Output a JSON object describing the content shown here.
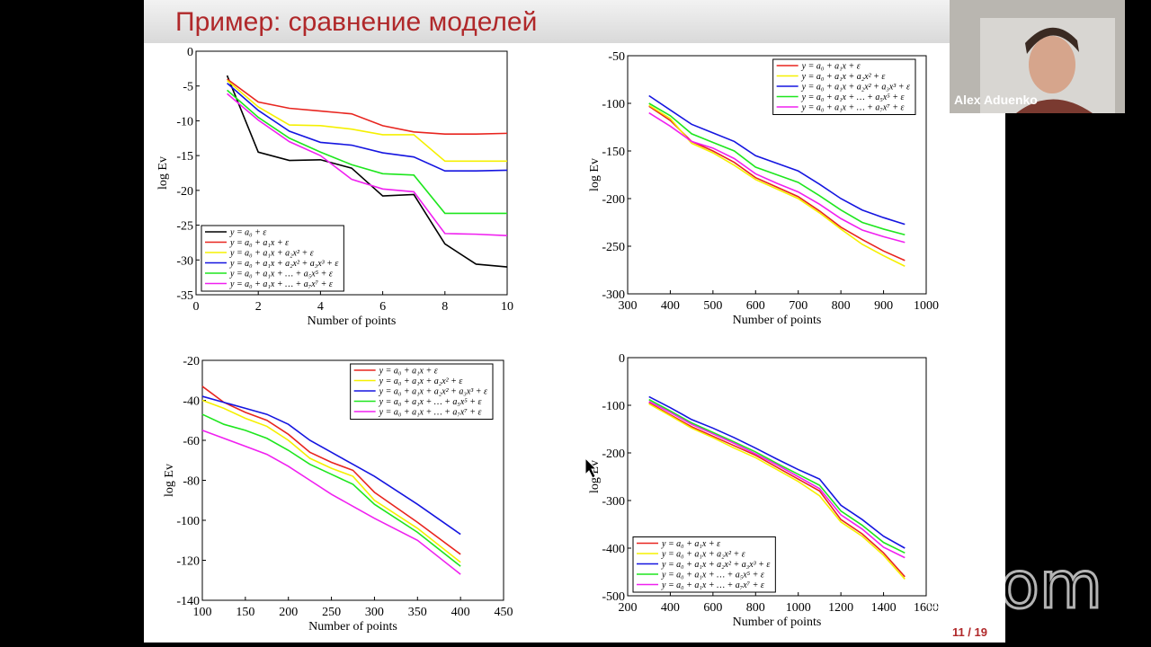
{
  "slide": {
    "title": "Пример: сравнение моделей",
    "page": "11 / 19"
  },
  "participant": {
    "name": "Alex Aduenko"
  },
  "watermark": "zoom",
  "chart_data": [
    {
      "type": "line",
      "xlabel": "Number of points",
      "ylabel": "log Ev",
      "legend": "lower left",
      "x": [
        1,
        2,
        3,
        4,
        5,
        6,
        7,
        8,
        9,
        10
      ],
      "xlim": [
        0,
        10
      ],
      "xticks": [
        0,
        2,
        4,
        6,
        8,
        10
      ],
      "ylim": [
        -35,
        0
      ],
      "yticks": [
        0,
        -5,
        -10,
        -15,
        -20,
        -25,
        -30,
        -35
      ],
      "series": [
        {
          "name": "y = a₀ + ε",
          "color": "#000000",
          "values": [
            -3.5,
            -14.5,
            -15.7,
            -15.6,
            -16.8,
            -20.8,
            -20.6,
            -27.7,
            -30.6,
            -31.0
          ]
        },
        {
          "name": "y = a₀ + a₁x + ε",
          "color": "#e8251f",
          "values": [
            -4,
            -7.3,
            -8.2,
            -8.6,
            -9.0,
            -10.7,
            -11.6,
            -11.9,
            -11.9,
            -11.8
          ]
        },
        {
          "name": "y = a₀ + a₁x + a₂x² + ε",
          "color": "#f5f000",
          "values": [
            -4.2,
            -8,
            -10.6,
            -10.7,
            -11.2,
            -12,
            -12,
            -15.8,
            -15.8,
            -15.8
          ]
        },
        {
          "name": "y = a₀ + a₁x + a₂x² + a₃x³ + ε",
          "color": "#1515e0",
          "values": [
            -4.6,
            -8.5,
            -11.5,
            -13.1,
            -13.5,
            -14.6,
            -15.2,
            -17.2,
            -17.2,
            -17.1
          ]
        },
        {
          "name": "y = a₀ + a₁x + … + a₅x⁵ + ε",
          "color": "#1ee61e",
          "values": [
            -5.6,
            -9.5,
            -12.5,
            -14.5,
            -16.3,
            -17.6,
            -17.8,
            -23.3,
            -23.3,
            -23.3
          ]
        },
        {
          "name": "y = a₀ + a₁x + … + a₇x⁷ + ε",
          "color": "#f020f0",
          "values": [
            -6.1,
            -9.9,
            -13.0,
            -15.0,
            -18.4,
            -19.8,
            -20.2,
            -26.2,
            -26.3,
            -26.5
          ]
        }
      ]
    },
    {
      "type": "line",
      "xlabel": "Number of points",
      "ylabel": "log Ev",
      "legend": "upper right",
      "x": [
        350,
        400,
        450,
        500,
        550,
        600,
        650,
        700,
        750,
        800,
        850,
        900,
        950
      ],
      "xlim": [
        300,
        1000
      ],
      "xticks": [
        300,
        400,
        500,
        600,
        700,
        800,
        900,
        1000
      ],
      "ylim": [
        -300,
        -50
      ],
      "yticks": [
        -50,
        -100,
        -150,
        -200,
        -250,
        -300
      ],
      "series": [
        {
          "name": "y = a₀ + a₁x + ε",
          "color": "#e8251f",
          "values": [
            -103,
            -118,
            -140,
            -150,
            -162,
            -178,
            -188,
            -198,
            -213,
            -230,
            -243,
            -255,
            -265
          ]
        },
        {
          "name": "y = a₀ + a₁x + a₂x² + ε",
          "color": "#f5f000",
          "values": [
            -102,
            -116,
            -142,
            -152,
            -165,
            -180,
            -190,
            -200,
            -215,
            -232,
            -248,
            -260,
            -271
          ]
        },
        {
          "name": "y = a₀ + a₁x + a₂x² + a₃x³ + ε",
          "color": "#1515e0",
          "values": [
            -92,
            -107,
            -122,
            -131,
            -140,
            -155,
            -163,
            -171,
            -185,
            -200,
            -212,
            -220,
            -227
          ]
        },
        {
          "name": "y = a₀ + a₁x + … + a₅x⁵ + ε",
          "color": "#1ee61e",
          "values": [
            -100,
            -113,
            -132,
            -141,
            -150,
            -167,
            -175,
            -183,
            -197,
            -212,
            -225,
            -232,
            -238
          ]
        },
        {
          "name": "y = a₀ + a₁x + … + a₇x⁷ + ε",
          "color": "#f020f0",
          "values": [
            -110,
            -124,
            -140,
            -147,
            -158,
            -174,
            -184,
            -193,
            -206,
            -221,
            -233,
            -240,
            -246
          ]
        }
      ]
    },
    {
      "type": "line",
      "xlabel": "Number of points",
      "ylabel": "log Ev",
      "legend": "upper right",
      "x": [
        100,
        125,
        150,
        175,
        200,
        225,
        250,
        275,
        300,
        350,
        400
      ],
      "xlim": [
        100,
        450
      ],
      "xticks": [
        100,
        150,
        200,
        250,
        300,
        350,
        400,
        450
      ],
      "ylim": [
        -140,
        -20
      ],
      "yticks": [
        -20,
        -40,
        -60,
        -80,
        -100,
        -120,
        -140
      ],
      "series": [
        {
          "name": "y = a₀ + a₁x + ε",
          "color": "#e8251f",
          "values": [
            -33,
            -41,
            -46,
            -50,
            -57,
            -66,
            -71,
            -75,
            -86,
            -101,
            -117
          ]
        },
        {
          "name": "y = a₀ + a₁x + a₂x² + ε",
          "color": "#f5f000",
          "values": [
            -40,
            -44,
            -49,
            -53,
            -60,
            -69,
            -74,
            -78,
            -90,
            -104,
            -121
          ]
        },
        {
          "name": "y = a₀ + a₁x + a₂x² + a₃x³ + ε",
          "color": "#1515e0",
          "values": [
            -38,
            -41,
            -44,
            -47,
            -52,
            -60,
            -66,
            -72,
            -78,
            -92,
            -107
          ]
        },
        {
          "name": "y = a₀ + a₁x + … + a₅x⁵ + ε",
          "color": "#1ee61e",
          "values": [
            -47,
            -52,
            -55,
            -59,
            -65,
            -72,
            -77,
            -82,
            -92,
            -106,
            -123
          ]
        },
        {
          "name": "y = a₀ + a₁x + … + a₇x⁷ + ε",
          "color": "#f020f0",
          "values": [
            -55,
            -59,
            -63,
            -67,
            -73,
            -80,
            -87,
            -93,
            -99,
            -110,
            -127
          ]
        }
      ]
    },
    {
      "type": "line",
      "xlabel": "Number of points",
      "ylabel": "log Ev",
      "legend": "lower left",
      "x": [
        300,
        400,
        500,
        600,
        700,
        800,
        900,
        1000,
        1100,
        1200,
        1300,
        1400,
        1500
      ],
      "xlim": [
        200,
        1600
      ],
      "xticks": [
        200,
        400,
        600,
        800,
        1000,
        1200,
        1400,
        1600
      ],
      "ylim": [
        -500,
        0
      ],
      "yticks": [
        0,
        -100,
        -200,
        -300,
        -400,
        -500
      ],
      "series": [
        {
          "name": "y = a₀ + a₁x + ε",
          "color": "#e8251f",
          "values": [
            -95,
            -120,
            -145,
            -165,
            -185,
            -205,
            -230,
            -255,
            -280,
            -340,
            -370,
            -410,
            -460
          ]
        },
        {
          "name": "y = a₀ + a₁x + a₂x² + ε",
          "color": "#f5f000",
          "values": [
            -97,
            -122,
            -148,
            -168,
            -190,
            -210,
            -235,
            -260,
            -290,
            -345,
            -375,
            -415,
            -465
          ]
        },
        {
          "name": "y = a₀ + a₁x + a₂x² + a₃x³ + ε",
          "color": "#1515e0",
          "values": [
            -82,
            -105,
            -130,
            -148,
            -168,
            -190,
            -213,
            -235,
            -255,
            -310,
            -340,
            -375,
            -400
          ]
        },
        {
          "name": "y = a₀ + a₁x + … + a₅x⁵ + ε",
          "color": "#1ee61e",
          "values": [
            -88,
            -112,
            -137,
            -157,
            -177,
            -198,
            -222,
            -245,
            -268,
            -322,
            -352,
            -388,
            -410
          ]
        },
        {
          "name": "y = a₀ + a₁x + … + a₇x⁷ + ε",
          "color": "#f020f0",
          "values": [
            -92,
            -115,
            -140,
            -160,
            -180,
            -202,
            -225,
            -250,
            -275,
            -330,
            -360,
            -398,
            -420
          ]
        }
      ]
    }
  ]
}
